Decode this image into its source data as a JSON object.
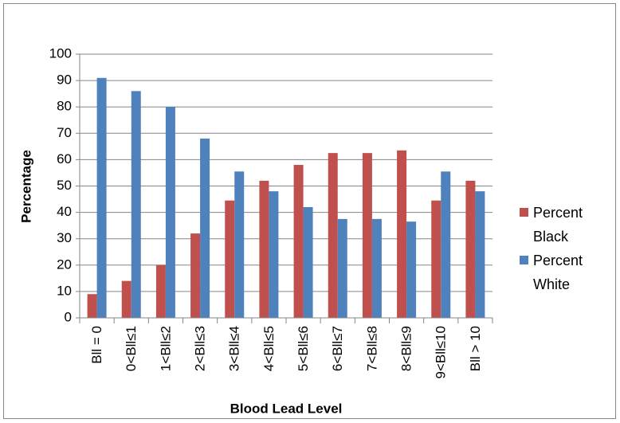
{
  "chart_data": {
    "type": "bar",
    "x_label": "Blood Lead Level",
    "y_label": "Percentage",
    "categories": [
      "Bll = 0",
      "0<Bll≤1",
      "1<Bll≤2",
      "2<Bll≤3",
      "3<Bll≤4",
      "4<Bll≤5",
      "5<Bll≤6",
      "6<Bll≤7",
      "7<Bll≤8",
      "8<Bll≤9",
      "9<Bll≤10",
      "Bll > 10"
    ],
    "series": [
      {
        "name": "Percent Black",
        "color": "#c0504d",
        "values": [
          9,
          14,
          20,
          32,
          44.5,
          52,
          58,
          62.5,
          62.5,
          63.5,
          44.5,
          52
        ]
      },
      {
        "name": "Percent White",
        "color": "#4f81bd",
        "values": [
          91,
          86,
          80,
          68,
          55.5,
          48,
          42,
          37.5,
          37.5,
          36.5,
          55.5,
          48
        ]
      }
    ],
    "ylim": [
      0,
      100
    ],
    "yticks": [
      0,
      10,
      20,
      30,
      40,
      50,
      60,
      70,
      80,
      90,
      100
    ],
    "grid": true,
    "legend": "right"
  }
}
